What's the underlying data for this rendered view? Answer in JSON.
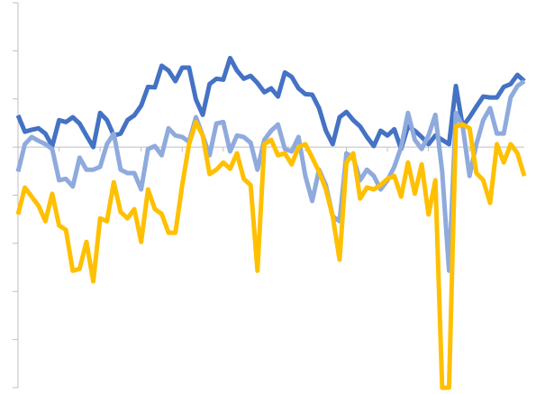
{
  "chart_data": {
    "type": "line",
    "categories": [
      null,
      null,
      null,
      null,
      null,
      null,
      null,
      null,
      null,
      null,
      null,
      null,
      null,
      null,
      null,
      null,
      null,
      null,
      null,
      null,
      null,
      null,
      null,
      null,
      null,
      null,
      null,
      null,
      null,
      null,
      null,
      null,
      null,
      null,
      null,
      null,
      null,
      null,
      null,
      null,
      null,
      null,
      null,
      null,
      null,
      null,
      null,
      null,
      null,
      null,
      null,
      null,
      null,
      null,
      null,
      null,
      null,
      null,
      null,
      null,
      null,
      null,
      null,
      null,
      null,
      null,
      null,
      null,
      null,
      null,
      null,
      null,
      null,
      null,
      null
    ],
    "series": [
      {
        "color": "#4472c4",
        "values": [
          0.66,
          0.32,
          0.36,
          0.39,
          0.28,
          0.02,
          0.56,
          0.52,
          0.62,
          0.49,
          0.24,
          0,
          0.71,
          0.56,
          0.24,
          0.28,
          0.56,
          0.66,
          0.86,
          1.25,
          1.24,
          1.69,
          1.59,
          1.37,
          1.65,
          1.65,
          0.99,
          0.67,
          1.31,
          1.42,
          1.4,
          1.85,
          1.59,
          1.42,
          1.48,
          1.33,
          1.14,
          1.22,
          1.05,
          1.55,
          1.46,
          1.22,
          1.1,
          1.09,
          0.81,
          0.34,
          0.06,
          0.62,
          0.73,
          0.56,
          0.43,
          0.21,
          0.02,
          0.34,
          0.24,
          0.37,
          -0.04,
          0.43,
          0.34,
          0.21,
          0.06,
          0.24,
          0.15,
          0.06,
          1.27,
          0.43,
          0.62,
          0.84,
          1.05,
          1.03,
          1.03,
          1.25,
          1.31,
          1.5,
          1.37
        ]
      },
      {
        "color": "#8faadc",
        "values": [
          -0.51,
          0.06,
          0.21,
          0.13,
          0.06,
          -0.04,
          -0.69,
          -0.66,
          -0.82,
          -0.22,
          -0.47,
          -0.47,
          -0.41,
          0.06,
          0.28,
          -0.47,
          -0.54,
          -0.54,
          -0.88,
          -0.04,
          0.02,
          -0.17,
          0.39,
          0.24,
          0.21,
          0.11,
          0.62,
          0.24,
          -0.17,
          0.49,
          0.52,
          -0.09,
          0.24,
          0.21,
          0.09,
          -0.47,
          0.15,
          0.34,
          0.47,
          -0.04,
          -0.09,
          0.21,
          -0.6,
          -1.12,
          -0.47,
          -0.79,
          -1.44,
          -1.54,
          -0.13,
          -0.22,
          -0.69,
          -0.47,
          -0.6,
          -0.88,
          -0.69,
          -0.41,
          0,
          0.71,
          0.15,
          -0.04,
          0.24,
          0.67,
          -0.51,
          -2.57,
          0.71,
          0.43,
          -0.6,
          0.06,
          0.56,
          0.81,
          0.28,
          0.28,
          1.03,
          1.27,
          1.37
        ]
      },
      {
        "color": "#ffc000",
        "values": [
          -1.4,
          -0.84,
          -1.03,
          -1.22,
          -1.54,
          -0.97,
          -1.63,
          -1.72,
          -2.57,
          -2.53,
          -1.97,
          -2.79,
          -1.48,
          -1.54,
          -0.73,
          -1.35,
          -1.48,
          -1.29,
          -1.97,
          -0.88,
          -1.29,
          -1.39,
          -1.78,
          -1.78,
          -0.79,
          0.06,
          0.52,
          0.24,
          -0.56,
          -0.47,
          -0.32,
          -0.45,
          -0.13,
          -0.66,
          -0.79,
          -2.57,
          0.06,
          0.15,
          -0.17,
          -0.13,
          -0.36,
          0,
          0.06,
          -0.22,
          -0.51,
          -0.88,
          -1.44,
          -2.34,
          -0.32,
          -0.13,
          -1.07,
          -0.84,
          -0.88,
          -0.79,
          -0.66,
          -0.6,
          -1.03,
          -0.32,
          -0.97,
          -0.36,
          -1.4,
          -0.69,
          -5,
          -5,
          0.43,
          0.47,
          0.39,
          -0.54,
          -0.69,
          -1.16,
          0.06,
          -0.32,
          0.06,
          -0.13,
          -0.6
        ]
      }
    ],
    "ylim": [
      -5,
      3
    ],
    "yticks": [
      -5,
      -4,
      -3,
      -2,
      -1,
      0,
      1,
      2,
      3
    ]
  }
}
